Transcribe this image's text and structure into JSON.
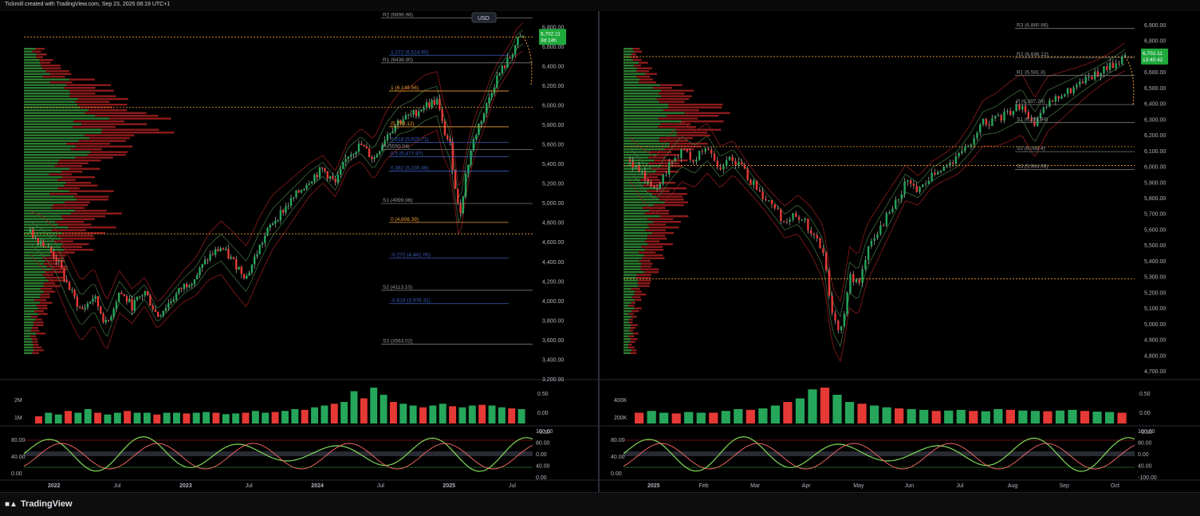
{
  "header": {
    "attribution": "Tickmill created with TradingView.com, Sep 23, 2025 08:19 UTC+1"
  },
  "footer": {
    "brand": "TradingView",
    "logo_icon": "tradingview-logo-icon"
  },
  "colors": {
    "up": "#26a65b",
    "down": "#e53935",
    "profile_up": "#2e7d32",
    "profile_down": "#8e1b1b",
    "pivot": "#7a7a7a",
    "fib": "#3b5fc0",
    "orange": "#f0a030",
    "accent": "#1fa83c"
  },
  "chart_data": [
    {
      "id": "left",
      "type": "candlestick",
      "title": "",
      "currency_button": "USD",
      "price_axis": {
        "ticks": [
          "6,800.00",
          "6,600.00",
          "6,400.00",
          "6,200.00",
          "6,000.00",
          "5,800.00",
          "5,600.00",
          "5,400.00",
          "5,200.00",
          "5,000.00",
          "4,800.00",
          "4,600.00",
          "4,400.00",
          "4,200.00",
          "4,000.00",
          "3,800.00",
          "3,600.00",
          "3,400.00",
          "3,200.00"
        ],
        "ylim": [
          3200,
          6900
        ]
      },
      "time_axis": [
        "2022",
        "Jul",
        "2023",
        "Jul",
        "2024",
        "Jul",
        "2025",
        "Jul"
      ],
      "last_price": {
        "value": "6,702.11",
        "countdown": "3d 14h",
        "raw": 6702.11
      },
      "price_series": [
        [
          0,
          4700
        ],
        [
          4,
          4600
        ],
        [
          8,
          4450
        ],
        [
          12,
          4150
        ],
        [
          16,
          3900
        ],
        [
          20,
          4050
        ],
        [
          24,
          3750
        ],
        [
          28,
          4100
        ],
        [
          32,
          3950
        ],
        [
          36,
          4100
        ],
        [
          40,
          3850
        ],
        [
          44,
          4000
        ],
        [
          48,
          4150
        ],
        [
          52,
          4250
        ],
        [
          56,
          4450
        ],
        [
          60,
          4550
        ],
        [
          64,
          4400
        ],
        [
          68,
          4250
        ],
        [
          72,
          4550
        ],
        [
          76,
          4800
        ],
        [
          80,
          4950
        ],
        [
          84,
          5100
        ],
        [
          88,
          5250
        ],
        [
          92,
          5350
        ],
        [
          96,
          5200
        ],
        [
          100,
          5500
        ],
        [
          104,
          5600
        ],
        [
          108,
          5450
        ],
        [
          112,
          5700
        ],
        [
          116,
          5850
        ],
        [
          120,
          5900
        ],
        [
          124,
          6000
        ],
        [
          128,
          6050
        ],
        [
          130,
          5750
        ],
        [
          132,
          5600
        ],
        [
          134,
          5100
        ],
        [
          135,
          4850
        ],
        [
          137,
          5300
        ],
        [
          139,
          5600
        ],
        [
          141,
          5800
        ],
        [
          143,
          5950
        ],
        [
          145,
          6150
        ],
        [
          147,
          6300
        ],
        [
          149,
          6400
        ],
        [
          151,
          6500
        ],
        [
          153,
          6650
        ],
        [
          155,
          6702
        ]
      ],
      "pivots": [
        {
          "label": "R2 (6896.98)",
          "value": 6896.98
        },
        {
          "label": "R1 (6436.90)",
          "value": 6436.9
        },
        {
          "label": "P (5550.04)",
          "value": 5550.04
        },
        {
          "label": "S1 (4999.96)",
          "value": 4999.96
        },
        {
          "label": "S2 (4113.10)",
          "value": 4113.1
        },
        {
          "label": "S3 (3563.02)",
          "value": 3563.02
        }
      ],
      "fibs": [
        {
          "label": "1.272 (6,514.90)",
          "value": 6514.9,
          "color": "fib"
        },
        {
          "label": "1 (6,149.56)",
          "value": 6149.56,
          "color": "orange"
        },
        {
          "label": "(5,784.12)",
          "value": 5784.12,
          "color": "orange"
        },
        {
          "label": "0.618 (5,625.71)",
          "value": 5625.71,
          "color": "fib"
        },
        {
          "label": "0.5 (5,477.97)",
          "value": 5477.97,
          "color": "fib"
        },
        {
          "label": "0.382 (5,330.46)",
          "value": 5330.46,
          "color": "fib"
        },
        {
          "label": "0 (4,806.39)",
          "value": 4806.39,
          "color": "orange"
        },
        {
          "label": "-0.272 (4,441.05)",
          "value": 4441.05,
          "color": "fib"
        },
        {
          "label": "-0.618 (3,976.31)",
          "value": 3976.31,
          "color": "fib"
        }
      ],
      "h_dotted": [
        6702,
        5984,
        4690
      ],
      "volume_axis": [
        "2M",
        "1M"
      ],
      "volume_right": [
        "0.50",
        "0.00",
        "-0.50"
      ],
      "volume": [
        0.2,
        0.3,
        0.25,
        0.35,
        0.3,
        0.4,
        0.3,
        0.25,
        0.3,
        0.35,
        0.3,
        0.3,
        0.25,
        0.3,
        0.3,
        0.28,
        0.3,
        0.32,
        0.3,
        0.26,
        0.28,
        0.3,
        0.35,
        0.3,
        0.32,
        0.35,
        0.4,
        0.38,
        0.45,
        0.5,
        0.55,
        0.6,
        0.9,
        0.7,
        1.0,
        0.8,
        0.6,
        0.55,
        0.5,
        0.45,
        0.5,
        0.55,
        0.48,
        0.45,
        0.5,
        0.52,
        0.5,
        0.45,
        0.42,
        0.4
      ],
      "osc_left": [
        "80.00",
        "40.00",
        "0.00"
      ],
      "osc_right": [
        "100.00",
        "80.00",
        "0.00",
        "40.00",
        "0.00"
      ]
    },
    {
      "id": "right",
      "type": "candlestick",
      "title": "",
      "price_axis": {
        "ticks": [
          "6,900.00",
          "6,800.00",
          "6,700.00",
          "6,600.00",
          "6,500.00",
          "6,400.00",
          "6,300.00",
          "6,200.00",
          "6,100.00",
          "6,000.00",
          "5,900.00",
          "5,800.00",
          "5,700.00",
          "5,600.00",
          "5,500.00",
          "5,400.00",
          "5,300.00",
          "5,200.00",
          "5,100.00",
          "5,000.00",
          "4,900.00",
          "4,800.00",
          "4,700.00"
        ],
        "ylim": [
          4650,
          6950
        ]
      },
      "time_axis": [
        "2025",
        "Feb",
        "Mar",
        "Apr",
        "May",
        "Jun",
        "Jul",
        "Aug",
        "Sep",
        "Oct"
      ],
      "last_price": {
        "value": "6,702.11",
        "countdown": "13:40:42",
        "raw": 6702.11
      },
      "price_series": [
        [
          0,
          6050
        ],
        [
          3,
          5950
        ],
        [
          6,
          5880
        ],
        [
          9,
          6000
        ],
        [
          12,
          6100
        ],
        [
          15,
          6050
        ],
        [
          18,
          6120
        ],
        [
          21,
          6000
        ],
        [
          24,
          6060
        ],
        [
          27,
          5950
        ],
        [
          30,
          5850
        ],
        [
          33,
          5750
        ],
        [
          36,
          5650
        ],
        [
          39,
          5700
        ],
        [
          42,
          5600
        ],
        [
          45,
          5450
        ],
        [
          47,
          5050
        ],
        [
          49,
          4950
        ],
        [
          51,
          5300
        ],
        [
          53,
          5250
        ],
        [
          55,
          5450
        ],
        [
          58,
          5600
        ],
        [
          61,
          5750
        ],
        [
          64,
          5900
        ],
        [
          67,
          5850
        ],
        [
          70,
          5950
        ],
        [
          73,
          6000
        ],
        [
          76,
          6050
        ],
        [
          79,
          6150
        ],
        [
          82,
          6280
        ],
        [
          85,
          6300
        ],
        [
          88,
          6350
        ],
        [
          91,
          6400
        ],
        [
          94,
          6250
        ],
        [
          97,
          6400
        ],
        [
          100,
          6450
        ],
        [
          103,
          6500
        ],
        [
          106,
          6550
        ],
        [
          109,
          6600
        ],
        [
          112,
          6650
        ],
        [
          115,
          6702
        ]
      ],
      "pivots": [
        {
          "label": "R3 (6,880.66)",
          "value": 6880.66
        },
        {
          "label": "R2 (6,696.12)",
          "value": 6696.12
        },
        {
          "label": "R1 (6,581.8)",
          "value": 6581.8
        },
        {
          "label": "P (6,397.26)",
          "value": 6397.26
        },
        {
          "label": "S1 (6,282.94)",
          "value": 6282.94
        },
        {
          "label": "S2 (6,098.4)",
          "value": 6098.4
        },
        {
          "label": "S3 (5,984.08)",
          "value": 5984.08
        }
      ],
      "h_dotted": [
        6702,
        6130,
        6010,
        5290
      ],
      "volume_axis": [
        "400K",
        "200K"
      ],
      "volume_right": [
        "0.50",
        "0.00",
        "-0.50"
      ],
      "volume": [
        0.3,
        0.35,
        0.3,
        0.28,
        0.32,
        0.3,
        0.3,
        0.35,
        0.4,
        0.38,
        0.42,
        0.5,
        0.6,
        0.7,
        0.95,
        1.0,
        0.8,
        0.6,
        0.55,
        0.5,
        0.45,
        0.42,
        0.4,
        0.38,
        0.35,
        0.36,
        0.38,
        0.35,
        0.34,
        0.4,
        0.38,
        0.36,
        0.35,
        0.34,
        0.36,
        0.38,
        0.35,
        0.33,
        0.32,
        0.3
      ],
      "osc_left": [
        "80.00",
        "40.00",
        "0.00"
      ],
      "osc_right": [
        "100.00",
        "80.00",
        "0.00",
        "40.00",
        "-100.00"
      ]
    }
  ]
}
